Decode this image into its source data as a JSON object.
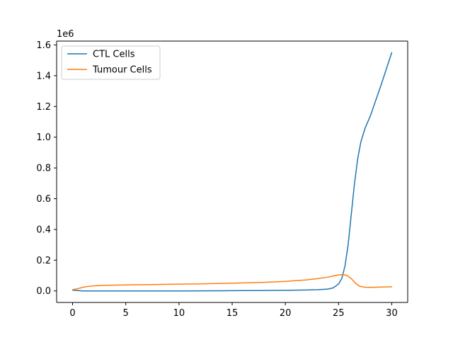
{
  "chart_data": {
    "type": "line",
    "title": "",
    "xlabel": "",
    "ylabel": "",
    "y_offset_label": "1e6",
    "xlim": [
      -1.5,
      31.5
    ],
    "ylim": [
      -0.075,
      1.625
    ],
    "x_ticks": [
      0,
      5,
      10,
      15,
      20,
      25,
      30
    ],
    "x_tick_labels": [
      "0",
      "5",
      "10",
      "15",
      "20",
      "25",
      "30"
    ],
    "y_ticks": [
      0.0,
      0.2,
      0.4,
      0.6,
      0.8,
      1.0,
      1.2,
      1.4,
      1.6
    ],
    "y_tick_labels": [
      "0.0",
      "0.2",
      "0.4",
      "0.6",
      "0.8",
      "1.0",
      "1.2",
      "1.4",
      "1.6"
    ],
    "grid": false,
    "legend_position": "upper-left",
    "series": [
      {
        "name": "CTL Cells",
        "color": "#1f77b4",
        "x": [
          0,
          1,
          2,
          4,
          6,
          8,
          10,
          12,
          14,
          16,
          18,
          20,
          22,
          23,
          24,
          24.5,
          25,
          25.3,
          25.6,
          25.9,
          26.2,
          26.5,
          26.8,
          27.1,
          27.5,
          28,
          29,
          30
        ],
        "y": [
          0.005,
          0.0,
          0.0,
          0.0,
          0.0,
          0.0,
          0.0,
          0.0005,
          0.001,
          0.002,
          0.003,
          0.004,
          0.006,
          0.008,
          0.012,
          0.02,
          0.045,
          0.08,
          0.16,
          0.3,
          0.5,
          0.7,
          0.86,
          0.97,
          1.06,
          1.14,
          1.34,
          1.55
        ]
      },
      {
        "name": "Tumour Cells",
        "color": "#ff7f0e",
        "x": [
          0,
          0.5,
          1,
          1.5,
          2,
          3,
          4,
          6,
          8,
          10,
          12,
          14,
          16,
          18,
          20,
          22,
          23,
          24,
          24.5,
          25,
          25.4,
          25.8,
          26.2,
          26.6,
          27,
          27.5,
          28,
          29,
          30
        ],
        "y": [
          0.008,
          0.015,
          0.024,
          0.03,
          0.033,
          0.036,
          0.038,
          0.04,
          0.042,
          0.044,
          0.046,
          0.049,
          0.052,
          0.056,
          0.062,
          0.072,
          0.08,
          0.09,
          0.097,
          0.104,
          0.107,
          0.1,
          0.08,
          0.05,
          0.03,
          0.024,
          0.023,
          0.025,
          0.027
        ]
      }
    ]
  }
}
